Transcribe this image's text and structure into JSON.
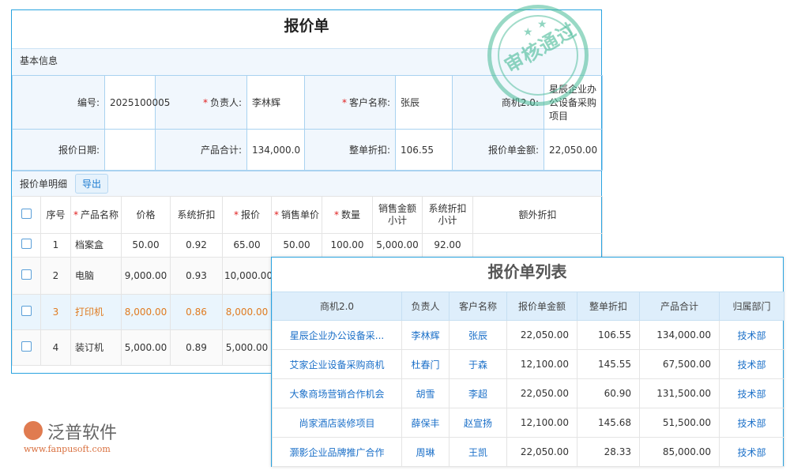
{
  "quote": {
    "title": "报价单",
    "basic_section": "基本信息",
    "fields": [
      {
        "label": "编号:",
        "value": "2025100005",
        "required": false
      },
      {
        "label": "负责人:",
        "value": "李林辉",
        "required": true
      },
      {
        "label": "客户名称:",
        "value": "张辰",
        "required": true
      },
      {
        "label": "商机2.0:",
        "value": "星辰企业办公设备采购项目",
        "required": false
      },
      {
        "label": "报价日期:",
        "value": "",
        "required": false
      },
      {
        "label": "产品合计:",
        "value": "134,000.0",
        "required": false
      },
      {
        "label": "整单折扣:",
        "value": "106.55",
        "required": false
      },
      {
        "label": "报价单金额:",
        "value": "22,050.00",
        "required": false
      }
    ],
    "detail_section": "报价单明细",
    "export_label": "导出",
    "columns": [
      "序号",
      "产品名称",
      "价格",
      "系统折扣",
      "报价",
      "销售单价",
      "数量",
      "销售金额小计",
      "系统折扣小计",
      "额外折扣"
    ],
    "rows": [
      [
        "1",
        "档案盒",
        "50.00",
        "0.92",
        "65.00",
        "50.00",
        "100.00",
        "5,000.00",
        "92.00",
        ""
      ],
      [
        "2",
        "电脑",
        "9,000.00",
        "0.93",
        "10,000.00",
        "",
        "",
        "",
        "",
        ""
      ],
      [
        "3",
        "打印机",
        "8,000.00",
        "0.86",
        "8,000.00",
        "",
        "",
        "",
        "",
        ""
      ],
      [
        "4",
        "装订机",
        "5,000.00",
        "0.89",
        "5,000.00",
        "",
        "",
        "",
        "",
        ""
      ]
    ],
    "stamp_text": "审核通过"
  },
  "list": {
    "title": "报价单列表",
    "columns": [
      "商机2.0",
      "负责人",
      "客户名称",
      "报价单金额",
      "整单折扣",
      "产品合计",
      "归属部门"
    ],
    "rows": [
      [
        "星辰企业办公设备采...",
        "李林辉",
        "张辰",
        "22,050.00",
        "106.55",
        "134,000.00",
        "技术部"
      ],
      [
        "艾家企业设备采购商机",
        "杜春门",
        "于森",
        "12,100.00",
        "145.55",
        "67,500.00",
        "技术部"
      ],
      [
        "大象商场营销合作机会",
        "胡雪",
        "李超",
        "22,050.00",
        "60.90",
        "131,500.00",
        "技术部"
      ],
      [
        "尚家酒店装修项目",
        "薛保丰",
        "赵宣扬",
        "12,100.00",
        "145.68",
        "51,500.00",
        "技术部"
      ],
      [
        "灏影企业品牌推广合作",
        "周琳",
        "王凯",
        "22,050.00",
        "28.33",
        "85,000.00",
        "技术部"
      ]
    ]
  },
  "watermark": {
    "name": "泛普软件",
    "url": "www.fanpusoft.com"
  },
  "colors": {
    "accent": "#29a3e0",
    "link": "#1a6fc8",
    "highlight": "#e07b20",
    "required": "#e02020"
  }
}
